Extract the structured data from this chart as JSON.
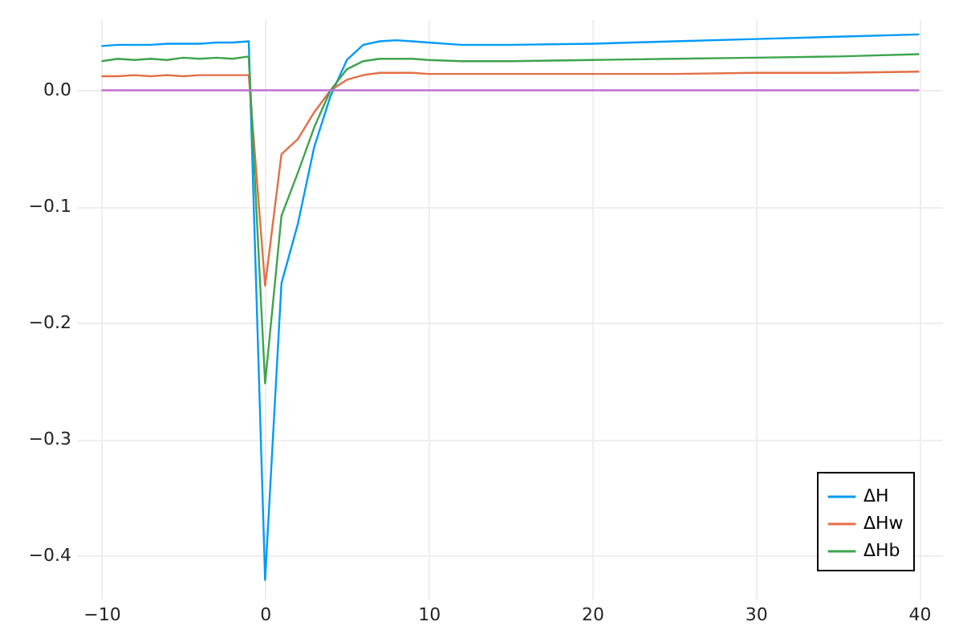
{
  "chart_data": {
    "type": "line",
    "x": [
      -10,
      -9,
      -8,
      -7,
      -6,
      -5,
      -4,
      -3,
      -2,
      -1,
      0,
      1,
      2,
      3,
      4,
      5,
      6,
      7,
      8,
      9,
      10,
      12,
      15,
      20,
      25,
      30,
      35,
      40
    ],
    "series": [
      {
        "name": "ΔH",
        "color": "#009af9",
        "values": [
          0.038,
          0.039,
          0.039,
          0.039,
          0.04,
          0.04,
          0.04,
          0.041,
          0.041,
          0.042,
          -0.421,
          -0.166,
          -0.115,
          -0.049,
          -0.005,
          0.026,
          0.039,
          0.042,
          0.043,
          0.042,
          0.041,
          0.039,
          0.039,
          0.04,
          0.042,
          0.044,
          0.046,
          0.048
        ]
      },
      {
        "name": "ΔHw",
        "color": "#e26f46",
        "values": [
          0.012,
          0.012,
          0.013,
          0.012,
          0.013,
          0.012,
          0.013,
          0.013,
          0.013,
          0.013,
          -0.168,
          -0.055,
          -0.042,
          -0.019,
          0.0,
          0.009,
          0.013,
          0.015,
          0.015,
          0.015,
          0.014,
          0.014,
          0.014,
          0.014,
          0.014,
          0.015,
          0.015,
          0.016
        ]
      },
      {
        "name": "ΔHb",
        "color": "#3da44d",
        "values": [
          0.025,
          0.027,
          0.026,
          0.027,
          0.026,
          0.028,
          0.027,
          0.028,
          0.027,
          0.029,
          -0.252,
          -0.108,
          -0.071,
          -0.032,
          0.0,
          0.018,
          0.025,
          0.027,
          0.027,
          0.027,
          0.026,
          0.025,
          0.025,
          0.026,
          0.027,
          0.028,
          0.029,
          0.031
        ]
      },
      {
        "color": "#c271d2",
        "x": [
          -10,
          40
        ],
        "values": [
          0,
          0
        ]
      }
    ],
    "xlim": [
      -11.5,
      41.4
    ],
    "ylim": [
      -0.437,
      0.061
    ],
    "xticks": [
      {
        "value": -10,
        "label": "−10"
      },
      0,
      10,
      20,
      30,
      40
    ],
    "yticks": [
      {
        "value": -0.4,
        "label": "−0.4"
      },
      {
        "value": -0.3,
        "label": "−0.3"
      },
      {
        "value": -0.2,
        "label": "−0.2"
      },
      {
        "value": -0.1,
        "label": "−0.1"
      },
      {
        "value": 0,
        "label": "0.0"
      }
    ],
    "grid": true,
    "legend": "bottom right",
    "line_style": "solid",
    "marker": "none"
  }
}
